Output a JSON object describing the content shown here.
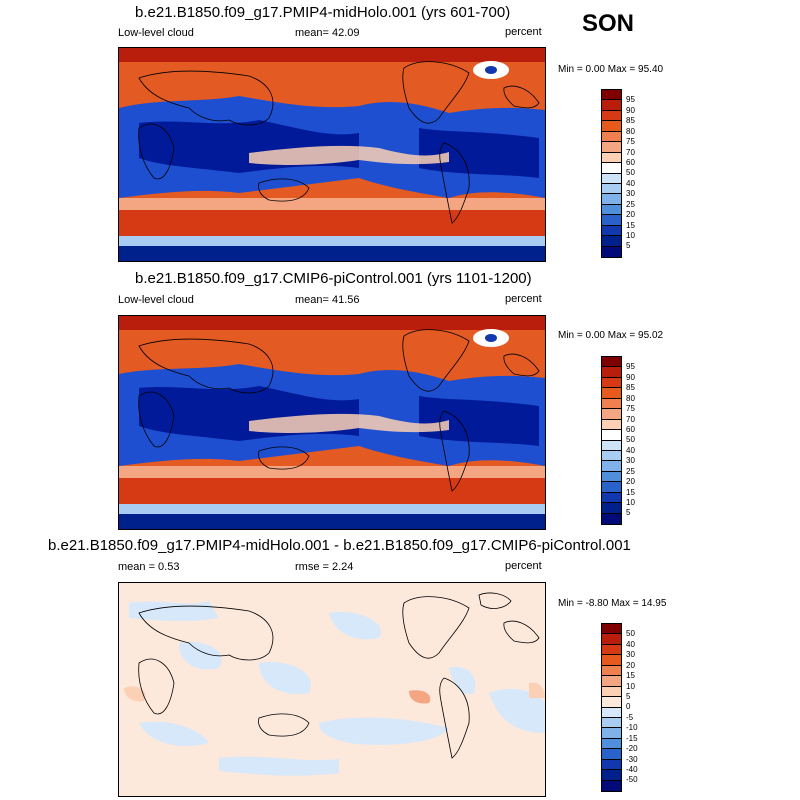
{
  "season": "SON",
  "panels": [
    {
      "title": "b.e21.B1850.f09_g17.PMIP4-midHolo.001 (yrs 601-700)",
      "left_label": "Low-level cloud",
      "mid_label": "mean=  42.09",
      "right_label": "percent",
      "stats": "Min =  0.00 Max =  95.40"
    },
    {
      "title": "b.e21.B1850.f09_g17.CMIP6-piControl.001 (yrs 1101-1200)",
      "left_label": "Low-level cloud",
      "mid_label": "mean=  41.56",
      "right_label": "percent",
      "stats": "Min =  0.00 Max =  95.02"
    },
    {
      "title": "b.e21.B1850.f09_g17.PMIP4-midHolo.001 - b.e21.B1850.f09_g17.CMIP6-piControl.001",
      "left_label": "mean =   0.53",
      "mid_label": "rmse =   2.24",
      "right_label": "percent",
      "stats": "Min =  -8.80 Max =  14.95"
    }
  ],
  "colorbar_abs": {
    "labels": [
      "95",
      "90",
      "85",
      "80",
      "75",
      "70",
      "60",
      "50",
      "40",
      "30",
      "25",
      "20",
      "15",
      "10",
      "5"
    ],
    "colors": [
      "#7f0000",
      "#b81e0b",
      "#d63a14",
      "#e65a1e",
      "#f08050",
      "#f4a582",
      "#fbd0b4",
      "#ffffff",
      "#cfe3f8",
      "#a9cdf2",
      "#7fb2ea",
      "#4f8fdc",
      "#2a62cc",
      "#1238b0",
      "#00208c",
      "#000a78"
    ]
  },
  "colorbar_diff": {
    "labels": [
      "50",
      "40",
      "30",
      "20",
      "15",
      "10",
      "5",
      "0",
      "-5",
      "-10",
      "-15",
      "-20",
      "-30",
      "-40",
      "-50"
    ],
    "colors": [
      "#7f0000",
      "#b81e0b",
      "#d63a14",
      "#e65a1e",
      "#f08050",
      "#f4a582",
      "#fbd0b4",
      "#fde8dc",
      "#d6e8fa",
      "#a9cdf2",
      "#7fb2ea",
      "#4f8fdc",
      "#2a62cc",
      "#1238b0",
      "#00208c",
      "#000a78"
    ]
  }
}
